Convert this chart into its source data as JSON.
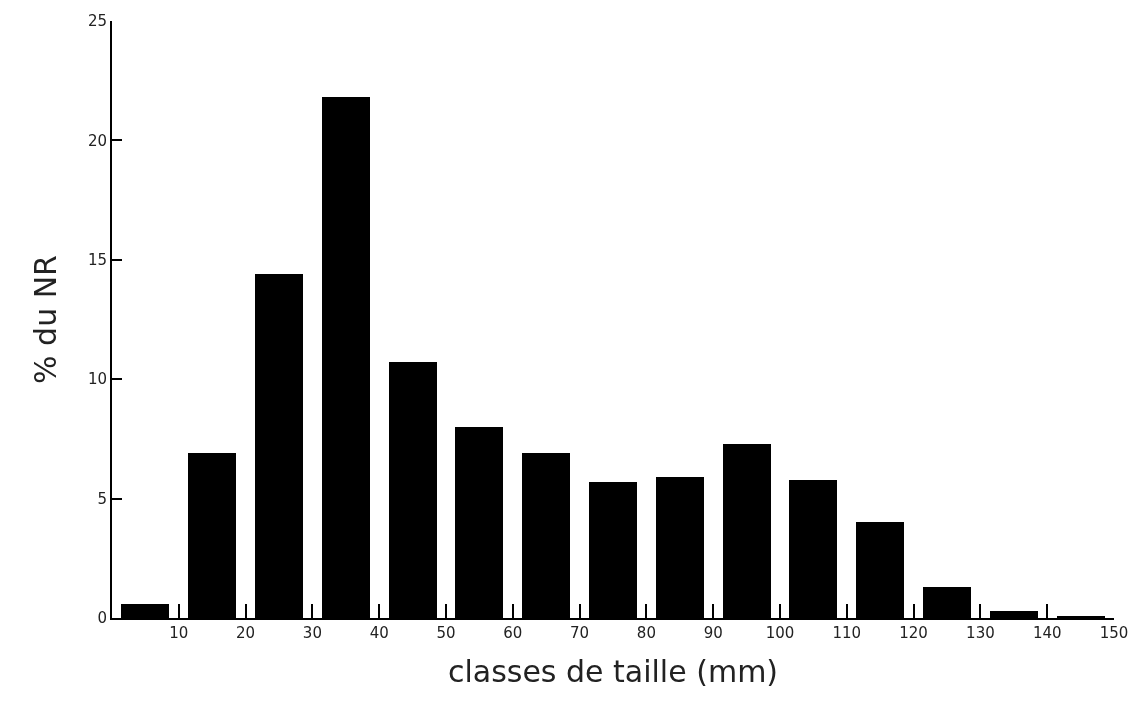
{
  "chart_data": {
    "type": "histogram",
    "xlabel": "classes de taille (mm)",
    "ylabel": "% du NR",
    "bins": [
      0,
      10,
      20,
      30,
      40,
      50,
      60,
      70,
      80,
      90,
      100,
      110,
      120,
      130,
      140,
      150
    ],
    "values": [
      0.6,
      6.9,
      14.4,
      21.8,
      10.7,
      8.0,
      6.9,
      5.7,
      5.9,
      7.3,
      5.8,
      4.0,
      1.3,
      0.3,
      0.1
    ],
    "color": "#000000",
    "xlim": [
      0,
      150
    ],
    "xticks": [
      10,
      20,
      30,
      40,
      50,
      60,
      70,
      80,
      90,
      100,
      110,
      120,
      130,
      140,
      150
    ],
    "ylim": [
      0,
      25
    ],
    "yticks": [
      0,
      5,
      10,
      15,
      20,
      25
    ],
    "grid": false,
    "legend": false
  }
}
